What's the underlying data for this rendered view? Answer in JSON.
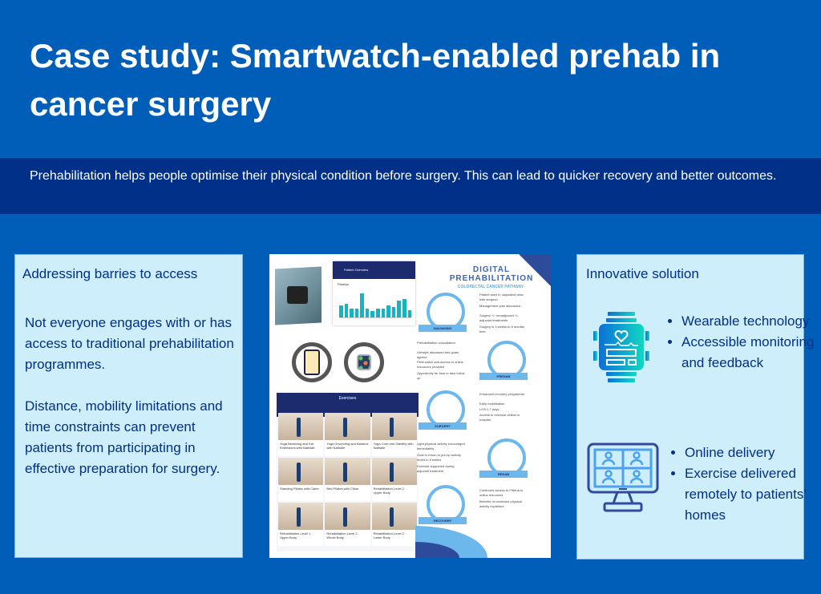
{
  "header": {
    "title": "Case study:  Smartwatch-enabled prehab in cancer surgery",
    "subtitle": "Prehabilitation helps people optimise their physical condition before surgery.  This can lead to quicker recovery and better outcomes."
  },
  "left_panel": {
    "heading": "Addressing barries to access",
    "paragraphs": [
      "Not everyone engages with or has access to traditional prehabilitation programmes.",
      "Distance, mobility limitations and time constraints can prevent patients from participating in effective preparation for surgery."
    ]
  },
  "center_panel": {
    "dashboard": {
      "title": "Patient Overview",
      "chart_label": "Fitsteps",
      "bar_values": [
        16,
        18,
        12,
        12,
        32,
        12,
        9,
        12,
        12,
        16,
        14,
        22,
        24,
        10
      ]
    },
    "icons": [
      "phone-app-icon",
      "smartwatch-icon"
    ],
    "exercises": {
      "title": "Exercises",
      "tiles": [
        "Yoga Breathing and Ear Extensions with Nathalie",
        "Yoga Grounding and Balance with Nathalie",
        "Yoga Core and Stability with Nathalie",
        "Standing Pilates with Claire",
        "Bed Pilates with Chloe",
        "Rehabilitation Level 2 - Upper Body",
        "Rehabilitation Level 1 - Upper Body",
        "Rehabilitation Level 2 - Whole Body",
        "Rehabilitation Level 2 - Lower Body"
      ]
    },
    "infographic": {
      "title": "DIGITAL PREHABILITATION",
      "subtitle": "COLORECTAL CANCER PATHWAY",
      "steps": [
        {
          "label": "DIAGNOSIS",
          "points": [
            "Patient seen in outpatient clinic with surgeon",
            "Management plan discussed",
            "Surgery +/- neoadjuvant +/- adjuvant treatments",
            "Surgery in 3 weeks to 6 months time"
          ]
        },
        {
          "label": "PREHAB",
          "points": [
            "Prehabilitation consultation",
            "Lifestyle discussed and goals agreed",
            "Fitbit watch and access to online resources provided",
            "Opportunity for face to face follow up"
          ]
        },
        {
          "label": "SURGERY",
          "points": [
            "Enhanced recovery programme",
            "Early mobilisation",
            "LOS 2-7 days",
            "Access to exercise videos in hospital"
          ]
        },
        {
          "label": "REHAB",
          "points": [
            "Light physical activity encouraged immediately",
            "Goal to return to pre-op activity levels in 6 weeks",
            "Exercise supported during adjuvant treatment"
          ]
        },
        {
          "label": "RECOVERY",
          "points": [
            "Continued access to Fitbit and online resources",
            "Benefits of continued physical activity explained"
          ]
        }
      ]
    }
  },
  "right_panel": {
    "heading": "Innovative solution",
    "group1": {
      "icon": "smartwatch-heart-icon",
      "bullets": [
        "Wearable technology",
        "Accessible monitoring and feedback"
      ]
    },
    "group2": {
      "icon": "video-call-monitor-icon",
      "bullets": [
        "Online delivery",
        "Exercise delivered remotely to patients’ homes"
      ]
    }
  },
  "colors": {
    "background": "#005eb8",
    "band": "#003087",
    "panel": "#cdeefa",
    "text_dark": "#003087"
  }
}
